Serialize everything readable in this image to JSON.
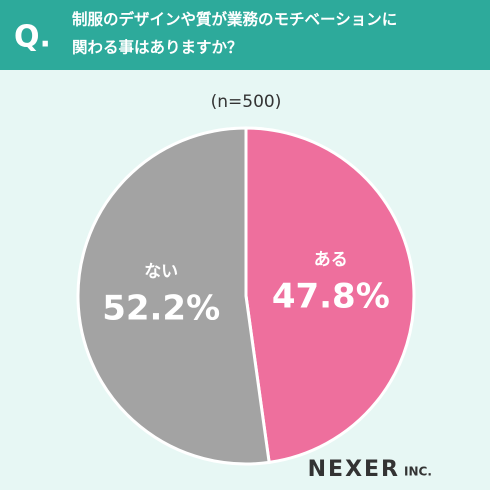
{
  "chart_data": {
    "type": "pie",
    "question_label": "Q.",
    "title_lines": [
      "制服のデザインや質が業務のモチベーションに",
      "関わる事はありますか？"
    ],
    "subtitle": "(n=500)",
    "categories": [
      "ある",
      "ない"
    ],
    "values": [
      47.8,
      52.2
    ],
    "value_labels": [
      "47.8%",
      "52.2%"
    ],
    "colors": [
      "#ee6f9d",
      "#a3a3a3"
    ],
    "logo": "NEXER",
    "logo_suffix": "INC."
  }
}
